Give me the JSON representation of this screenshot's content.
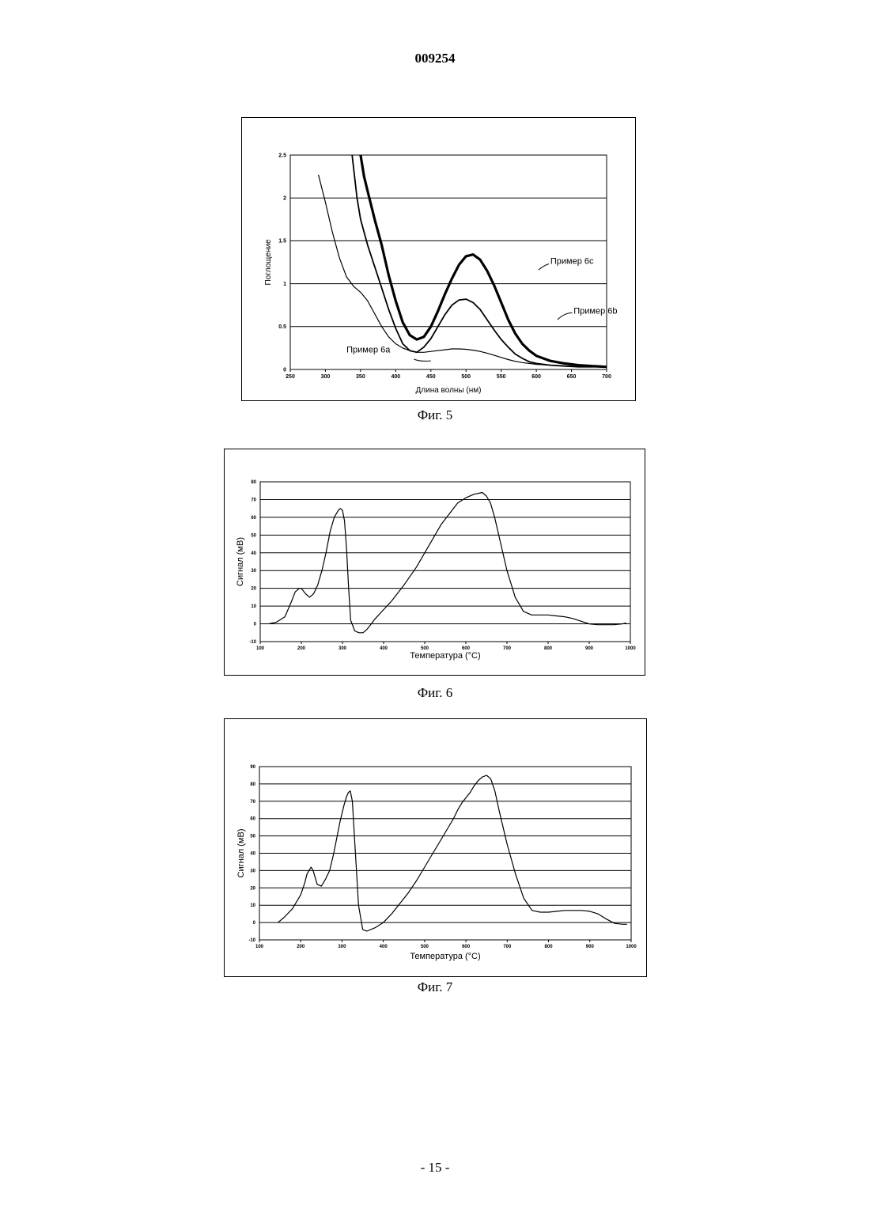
{
  "document": {
    "number": "009254",
    "page": "- 15 -"
  },
  "chart_data": [
    {
      "type": "line",
      "caption": "Фиг. 5",
      "xlabel": "Длина волны (нм)",
      "ylabel": "Поглощение",
      "xlim": [
        250,
        700
      ],
      "ylim": [
        0,
        2.5
      ],
      "xticks": [
        250,
        300,
        350,
        400,
        450,
        500,
        550,
        600,
        650,
        700
      ],
      "yticks": [
        0,
        0.5,
        1,
        1.5,
        2,
        2.5
      ],
      "ytick_labels": [
        "0",
        "0.5",
        "1",
        "1.5",
        "2",
        "2.5"
      ],
      "grid": "horizontal",
      "series": [
        {
          "name": "Пример 6с",
          "stroke": 3.2,
          "x": [
            350,
            355,
            360,
            370,
            380,
            390,
            400,
            410,
            420,
            430,
            440,
            450,
            460,
            470,
            480,
            490,
            500,
            510,
            520,
            530,
            540,
            550,
            560,
            570,
            580,
            590,
            600,
            620,
            640,
            660,
            680,
            700
          ],
          "y": [
            2.5,
            2.25,
            2.08,
            1.75,
            1.45,
            1.1,
            0.8,
            0.55,
            0.4,
            0.35,
            0.38,
            0.5,
            0.68,
            0.88,
            1.06,
            1.22,
            1.32,
            1.34,
            1.28,
            1.15,
            0.98,
            0.78,
            0.58,
            0.42,
            0.3,
            0.22,
            0.16,
            0.1,
            0.07,
            0.05,
            0.04,
            0.03
          ]
        },
        {
          "name": "Пример 6b",
          "stroke": 1.8,
          "x": [
            338,
            345,
            350,
            360,
            370,
            380,
            390,
            400,
            410,
            420,
            430,
            440,
            450,
            460,
            470,
            480,
            490,
            500,
            510,
            520,
            530,
            540,
            550,
            560,
            570,
            580,
            590,
            600,
            620,
            640,
            660,
            680,
            700
          ],
          "y": [
            2.5,
            2.0,
            1.75,
            1.45,
            1.2,
            0.95,
            0.7,
            0.48,
            0.3,
            0.22,
            0.2,
            0.26,
            0.36,
            0.5,
            0.64,
            0.75,
            0.81,
            0.82,
            0.78,
            0.7,
            0.58,
            0.46,
            0.35,
            0.26,
            0.18,
            0.13,
            0.09,
            0.07,
            0.05,
            0.04,
            0.03,
            0.03,
            0.03
          ]
        },
        {
          "name": "Пример 6а",
          "stroke": 1.2,
          "x": [
            290,
            300,
            310,
            320,
            330,
            340,
            350,
            360,
            370,
            380,
            390,
            400,
            410,
            420,
            430,
            440,
            450,
            460,
            470,
            480,
            490,
            500,
            510,
            520,
            530,
            540,
            550,
            560,
            570,
            580,
            590,
            600,
            620,
            640,
            660,
            680,
            700
          ],
          "y": [
            2.27,
            1.95,
            1.6,
            1.3,
            1.08,
            0.97,
            0.9,
            0.8,
            0.65,
            0.5,
            0.38,
            0.3,
            0.25,
            0.22,
            0.2,
            0.2,
            0.21,
            0.22,
            0.23,
            0.24,
            0.24,
            0.235,
            0.225,
            0.21,
            0.19,
            0.165,
            0.14,
            0.115,
            0.095,
            0.08,
            0.07,
            0.06,
            0.05,
            0.04,
            0.035,
            0.03,
            0.03
          ]
        }
      ],
      "annotations": [
        {
          "text": "Пример 6с",
          "x": 620,
          "y": 1.23
        },
        {
          "text": "Пример 6b",
          "x": 653,
          "y": 0.65
        },
        {
          "text": "Пример 6а",
          "x": 330,
          "y": 0.2
        }
      ]
    },
    {
      "type": "line",
      "caption": "Фиг. 6",
      "xlabel": "Температура (°С)",
      "ylabel": "Сигнал (мВ)",
      "xlim": [
        100,
        1000
      ],
      "ylim": [
        -10,
        80
      ],
      "xticks": [
        100,
        200,
        300,
        400,
        500,
        600,
        700,
        800,
        900,
        1000
      ],
      "yticks": [
        -10,
        0,
        10,
        20,
        30,
        40,
        50,
        60,
        70,
        80
      ],
      "grid": "horizontal",
      "series": [
        {
          "name": "",
          "stroke": 1.2,
          "x": [
            120,
            140,
            160,
            175,
            185,
            195,
            200,
            210,
            220,
            230,
            240,
            250,
            260,
            270,
            280,
            290,
            295,
            300,
            305,
            310,
            315,
            320,
            330,
            340,
            350,
            360,
            370,
            380,
            400,
            420,
            450,
            480,
            500,
            520,
            540,
            560,
            580,
            600,
            620,
            640,
            650,
            660,
            670,
            680,
            690,
            700,
            720,
            740,
            760,
            780,
            800,
            820,
            840,
            860,
            880,
            900,
            920,
            940,
            960,
            980,
            990
          ],
          "y": [
            0,
            1,
            4,
            12,
            18,
            20,
            20,
            17,
            15,
            17,
            22,
            30,
            40,
            52,
            60,
            64,
            65,
            64,
            58,
            42,
            20,
            2,
            -4,
            -5,
            -5,
            -3,
            0,
            3,
            8,
            13,
            22,
            32,
            40,
            48,
            56,
            62,
            68,
            71,
            73,
            74,
            72,
            68,
            60,
            50,
            40,
            30,
            15,
            7,
            5,
            5,
            5,
            4.5,
            4,
            3,
            1.5,
            0,
            -0.5,
            -0.5,
            -0.5,
            0,
            0.5
          ]
        }
      ]
    },
    {
      "type": "line",
      "caption": "Фиг. 7",
      "xlabel": "Температура  (°С)",
      "ylabel": "Сигнал (мВ)",
      "xlim": [
        100,
        1000
      ],
      "ylim": [
        -10,
        90
      ],
      "xticks": [
        100,
        200,
        300,
        400,
        500,
        600,
        700,
        800,
        900,
        1000
      ],
      "yticks": [
        -10,
        0,
        10,
        20,
        30,
        40,
        50,
        60,
        70,
        80,
        90
      ],
      "grid": "horizontal",
      "series": [
        {
          "name": "",
          "stroke": 1.2,
          "x": [
            145,
            160,
            180,
            200,
            210,
            215,
            220,
            225,
            230,
            240,
            250,
            260,
            270,
            280,
            290,
            295,
            300,
            305,
            310,
            315,
            320,
            325,
            330,
            340,
            350,
            360,
            380,
            400,
            420,
            440,
            460,
            480,
            500,
            520,
            540,
            560,
            570,
            580,
            590,
            600,
            610,
            620,
            630,
            640,
            650,
            660,
            670,
            680,
            690,
            700,
            720,
            740,
            760,
            780,
            800,
            820,
            840,
            860,
            880,
            900,
            920,
            940,
            960,
            980,
            990
          ],
          "y": [
            0,
            3,
            8,
            16,
            23,
            28,
            30,
            32,
            30,
            22,
            21,
            25,
            30,
            40,
            52,
            58,
            63,
            68,
            72,
            75,
            76,
            70,
            50,
            10,
            -4,
            -5,
            -3,
            0,
            5,
            11,
            17,
            24,
            32,
            40,
            48,
            56,
            60,
            65,
            69,
            72,
            75,
            79,
            82,
            84,
            85,
            83,
            76,
            65,
            55,
            45,
            28,
            14,
            7,
            6,
            6,
            6.5,
            7,
            7,
            7,
            6.5,
            5,
            2,
            -0.5,
            -1,
            -1
          ]
        }
      ]
    }
  ]
}
